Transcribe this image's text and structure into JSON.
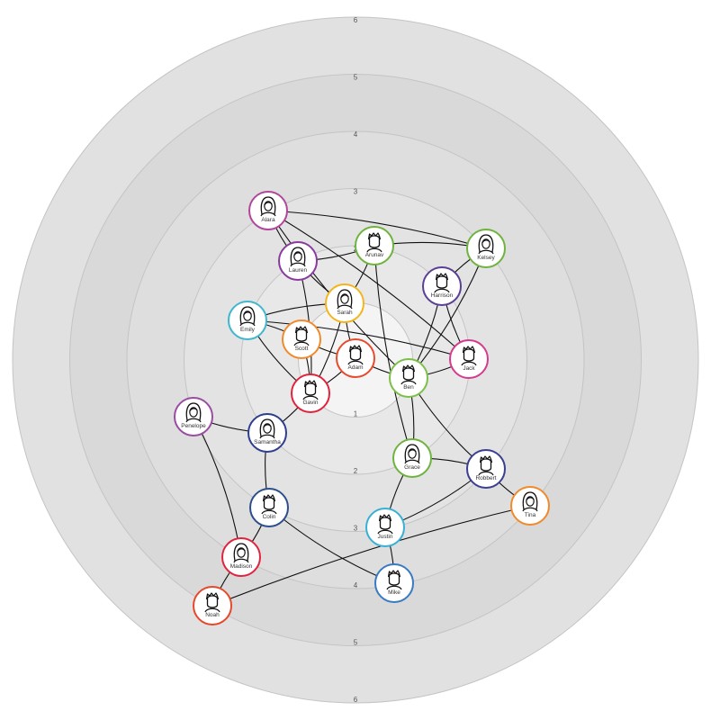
{
  "rings": {
    "fills": [
      "#f4f4f4",
      "#e8e8e8",
      "#e3e3e3",
      "#dedede",
      "#d9d9d9",
      "#e1e1e1"
    ],
    "labels": [
      "1",
      "2",
      "3",
      "4",
      "5",
      "6"
    ]
  },
  "nodes": [
    {
      "id": "alara",
      "name": "Alara",
      "color": "#b0479c",
      "avatar": "female-avatar-icon"
    },
    {
      "id": "lauren",
      "name": "Lauren",
      "color": "#8a3a9e",
      "avatar": "female-avatar-icon"
    },
    {
      "id": "arunav",
      "name": "Arunav",
      "color": "#6fb33f",
      "avatar": "male-avatar-icon"
    },
    {
      "id": "kelsey",
      "name": "Kelsey",
      "color": "#6fb33f",
      "avatar": "female-avatar-icon"
    },
    {
      "id": "harrison",
      "name": "Harrison",
      "color": "#5a3f94",
      "avatar": "male-avatar-icon"
    },
    {
      "id": "sarah",
      "name": "Sarah",
      "color": "#f2b51e",
      "avatar": "female-avatar-icon"
    },
    {
      "id": "emily",
      "name": "Emily",
      "color": "#42b6cf",
      "avatar": "female-avatar-icon"
    },
    {
      "id": "scott",
      "name": "Scott",
      "color": "#f08a2c",
      "avatar": "male-avatar-icon"
    },
    {
      "id": "adam",
      "name": "Adam",
      "color": "#e64b2e",
      "avatar": "male-avatar-icon"
    },
    {
      "id": "jack",
      "name": "Jack",
      "color": "#d43b8f",
      "avatar": "male-avatar-icon"
    },
    {
      "id": "ben",
      "name": "Ben",
      "color": "#7cc04a",
      "avatar": "male-avatar-icon"
    },
    {
      "id": "gavin",
      "name": "Gavin",
      "color": "#e0243e",
      "avatar": "male-avatar-icon"
    },
    {
      "id": "penelope",
      "name": "Penelope",
      "color": "#9a4ba2",
      "avatar": "female-avatar-icon"
    },
    {
      "id": "samantha",
      "name": "Samantha",
      "color": "#2d3e8c",
      "avatar": "female-avatar-icon"
    },
    {
      "id": "grace",
      "name": "Grace",
      "color": "#6fb33f",
      "avatar": "female-avatar-icon"
    },
    {
      "id": "robbert",
      "name": "Robbert",
      "color": "#3b3f8f",
      "avatar": "male-avatar-icon"
    },
    {
      "id": "tina",
      "name": "Tina",
      "color": "#f08a2c",
      "avatar": "female-avatar-icon"
    },
    {
      "id": "colin",
      "name": "Colin",
      "color": "#2d4e8c",
      "avatar": "male-avatar-icon"
    },
    {
      "id": "justin",
      "name": "Justin",
      "color": "#37b0d6",
      "avatar": "male-avatar-icon"
    },
    {
      "id": "madison",
      "name": "Madison",
      "color": "#e0243e",
      "avatar": "female-avatar-icon"
    },
    {
      "id": "mike",
      "name": "Mike",
      "color": "#3a7ac2",
      "avatar": "male-avatar-icon"
    },
    {
      "id": "noah",
      "name": "Noah",
      "color": "#e6482b",
      "avatar": "male-avatar-icon"
    }
  ],
  "edges": [
    [
      "alara",
      "lauren"
    ],
    [
      "alara",
      "kelsey"
    ],
    [
      "alara",
      "ben"
    ],
    [
      "alara",
      "jack"
    ],
    [
      "lauren",
      "sarah"
    ],
    [
      "lauren",
      "gavin"
    ],
    [
      "lauren",
      "arunav"
    ],
    [
      "arunav",
      "kelsey"
    ],
    [
      "arunav",
      "grace"
    ],
    [
      "arunav",
      "sarah"
    ],
    [
      "kelsey",
      "harrison"
    ],
    [
      "kelsey",
      "ben"
    ],
    [
      "harrison",
      "jack"
    ],
    [
      "harrison",
      "ben"
    ],
    [
      "sarah",
      "adam"
    ],
    [
      "sarah",
      "gavin"
    ],
    [
      "sarah",
      "emily"
    ],
    [
      "emily",
      "jack"
    ],
    [
      "emily",
      "gavin"
    ],
    [
      "emily",
      "scott"
    ],
    [
      "scott",
      "adam"
    ],
    [
      "scott",
      "gavin"
    ],
    [
      "adam",
      "ben"
    ],
    [
      "adam",
      "gavin"
    ],
    [
      "ben",
      "jack"
    ],
    [
      "ben",
      "grace"
    ],
    [
      "ben",
      "robbert"
    ],
    [
      "gavin",
      "samantha"
    ],
    [
      "penelope",
      "samantha"
    ],
    [
      "penelope",
      "madison"
    ],
    [
      "samantha",
      "colin"
    ],
    [
      "grace",
      "robbert"
    ],
    [
      "grace",
      "justin"
    ],
    [
      "robbert",
      "justin"
    ],
    [
      "robbert",
      "tina"
    ],
    [
      "colin",
      "madison"
    ],
    [
      "colin",
      "mike"
    ],
    [
      "justin",
      "mike"
    ],
    [
      "madison",
      "noah"
    ],
    [
      "noah",
      "tina"
    ]
  ]
}
